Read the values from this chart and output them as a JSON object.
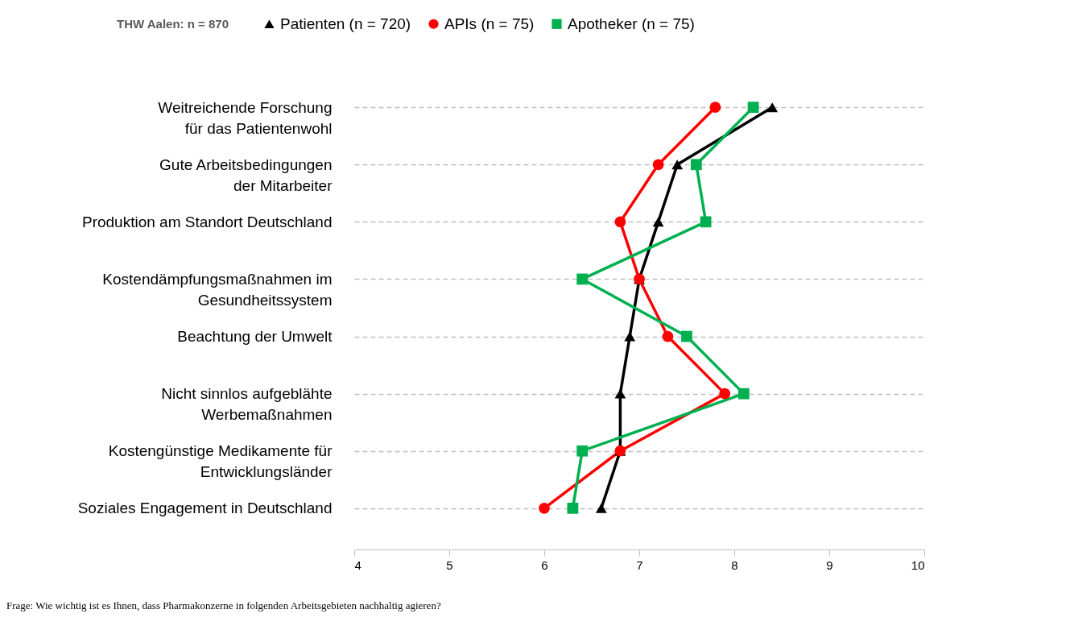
{
  "chart_data": {
    "type": "line",
    "orientation": "horizontal",
    "legend_title": "THW Aalen: n = 870",
    "categories": [
      "Weitreichende Forschung\nfür das Patientenwohl",
      "Gute Arbeitsbedingungen\nder Mitarbeiter",
      "Produktion am Standort Deutschland",
      "Kostendämpfungsmaßnahmen im\nGesundheitssystem",
      "Beachtung der Umwelt",
      "Nicht sinnlos aufgeblähte\nWerbemaßnahmen",
      "Kostengünstige Medikamente für\nEntwicklungsländer",
      "Soziales Engagement in Deutschland"
    ],
    "series": [
      {
        "name": "Patienten (n = 720)",
        "color": "#000000",
        "marker": "triangle",
        "values": [
          8.4,
          7.4,
          7.2,
          7.0,
          6.9,
          6.8,
          6.8,
          6.6
        ]
      },
      {
        "name": "APIs (n = 75)",
        "color": "#ff0000",
        "marker": "circle",
        "values": [
          7.8,
          7.2,
          6.8,
          7.0,
          7.3,
          7.9,
          6.8,
          6.0
        ]
      },
      {
        "name": "Apotheker (n = 75)",
        "color": "#00b050",
        "marker": "square",
        "values": [
          8.2,
          7.6,
          7.7,
          6.4,
          7.5,
          8.1,
          6.4,
          6.3
        ]
      }
    ],
    "xlim": [
      4,
      10
    ],
    "xticks": [
      4,
      5,
      6,
      7,
      8,
      9,
      10
    ],
    "grid": "y",
    "legend": "top",
    "line_style": "solid",
    "annotations": [
      "Frage: Wie wichtig ist es Ihnen, dass Pharmakonzerne in folgenden Arbeitsgebieten nachhaltig agieren?"
    ]
  }
}
